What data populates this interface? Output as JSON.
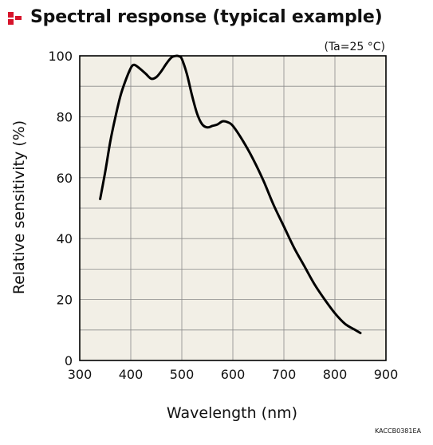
{
  "header": {
    "title": "Spectral response (typical example)",
    "logo_color": "#d7142b"
  },
  "chart_data": {
    "type": "line",
    "title": "Spectral response (typical example)",
    "condition": "(Ta=25 °C)",
    "xlabel": "Wavelength (nm)",
    "ylabel": "Relative sensitivity (%)",
    "xlim": [
      300,
      900
    ],
    "ylim": [
      0,
      100
    ],
    "x_ticks": [
      "300",
      "400",
      "500",
      "600",
      "700",
      "800",
      "900"
    ],
    "y_ticks": [
      "0",
      "20",
      "40",
      "60",
      "80",
      "100"
    ],
    "grid": true,
    "plot_background": "#f2efe6",
    "line_color": "#000000",
    "figure_code": "KACCB0381EA",
    "series": [
      {
        "x": [
          340,
          350,
          360,
          370,
          380,
          390,
          400,
          405,
          410,
          420,
          430,
          440,
          450,
          460,
          470,
          480,
          490,
          495,
          500,
          510,
          520,
          530,
          540,
          550,
          560,
          570,
          580,
          590,
          600,
          620,
          640,
          660,
          680,
          700,
          720,
          740,
          760,
          780,
          800,
          820,
          840,
          850
        ],
        "values": [
          53,
          62,
          72,
          80,
          87,
          92,
          96,
          97,
          96.8,
          95.5,
          94,
          92.5,
          93,
          95,
          97.5,
          99.5,
          100,
          99.8,
          99,
          94,
          87,
          81,
          77.5,
          76.5,
          77,
          77.5,
          78.5,
          78.2,
          77,
          72,
          66,
          59,
          51,
          44,
          37,
          31,
          25,
          20,
          15.5,
          12,
          10,
          9
        ]
      }
    ]
  }
}
